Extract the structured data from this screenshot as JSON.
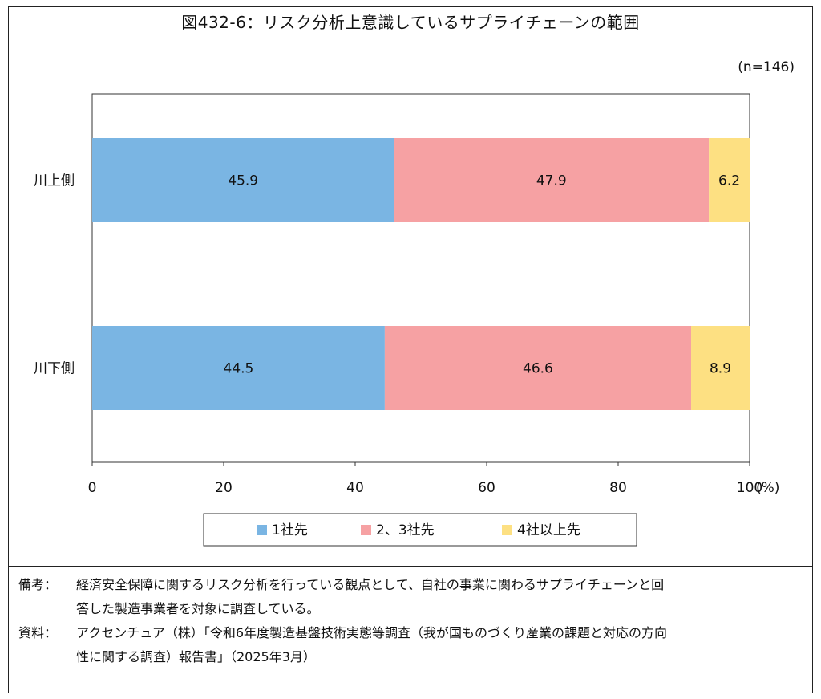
{
  "title": "図432-6：リスク分析上意識しているサプライチェーンの範囲",
  "n_label": "(n=146)",
  "colors": {
    "series1": "#7ab5e3",
    "series2": "#f6a1a3",
    "series3": "#fde082"
  },
  "chart_data": {
    "type": "bar",
    "orientation": "horizontal",
    "stacked": true,
    "categories": [
      "川上側",
      "川下側"
    ],
    "series": [
      {
        "name": "1社先",
        "values": [
          45.9,
          44.5
        ]
      },
      {
        "name": "2、3社先",
        "values": [
          47.9,
          46.6
        ]
      },
      {
        "name": "4社以上先",
        "values": [
          6.2,
          8.9
        ]
      }
    ],
    "xlim": [
      0,
      100
    ],
    "xticks": [
      "0",
      "20",
      "40",
      "60",
      "80",
      "100"
    ],
    "xunit": "(%)",
    "legend_position": "bottom",
    "grid": false
  },
  "notes": [
    {
      "label": "備考：",
      "lines": [
        "経済安全保障に関するリスク分析を行っている観点として、自社の事業に関わるサプライチェーンと回",
        "答した製造事業者を対象に調査している。"
      ]
    },
    {
      "label": "資料：",
      "lines": [
        "アクセンチュア（株）「令和6年度製造基盤技術実態等調査（我が国ものづくり産業の課題と対応の方向",
        "性に関する調査）報告書」（2025年3月）"
      ]
    }
  ]
}
